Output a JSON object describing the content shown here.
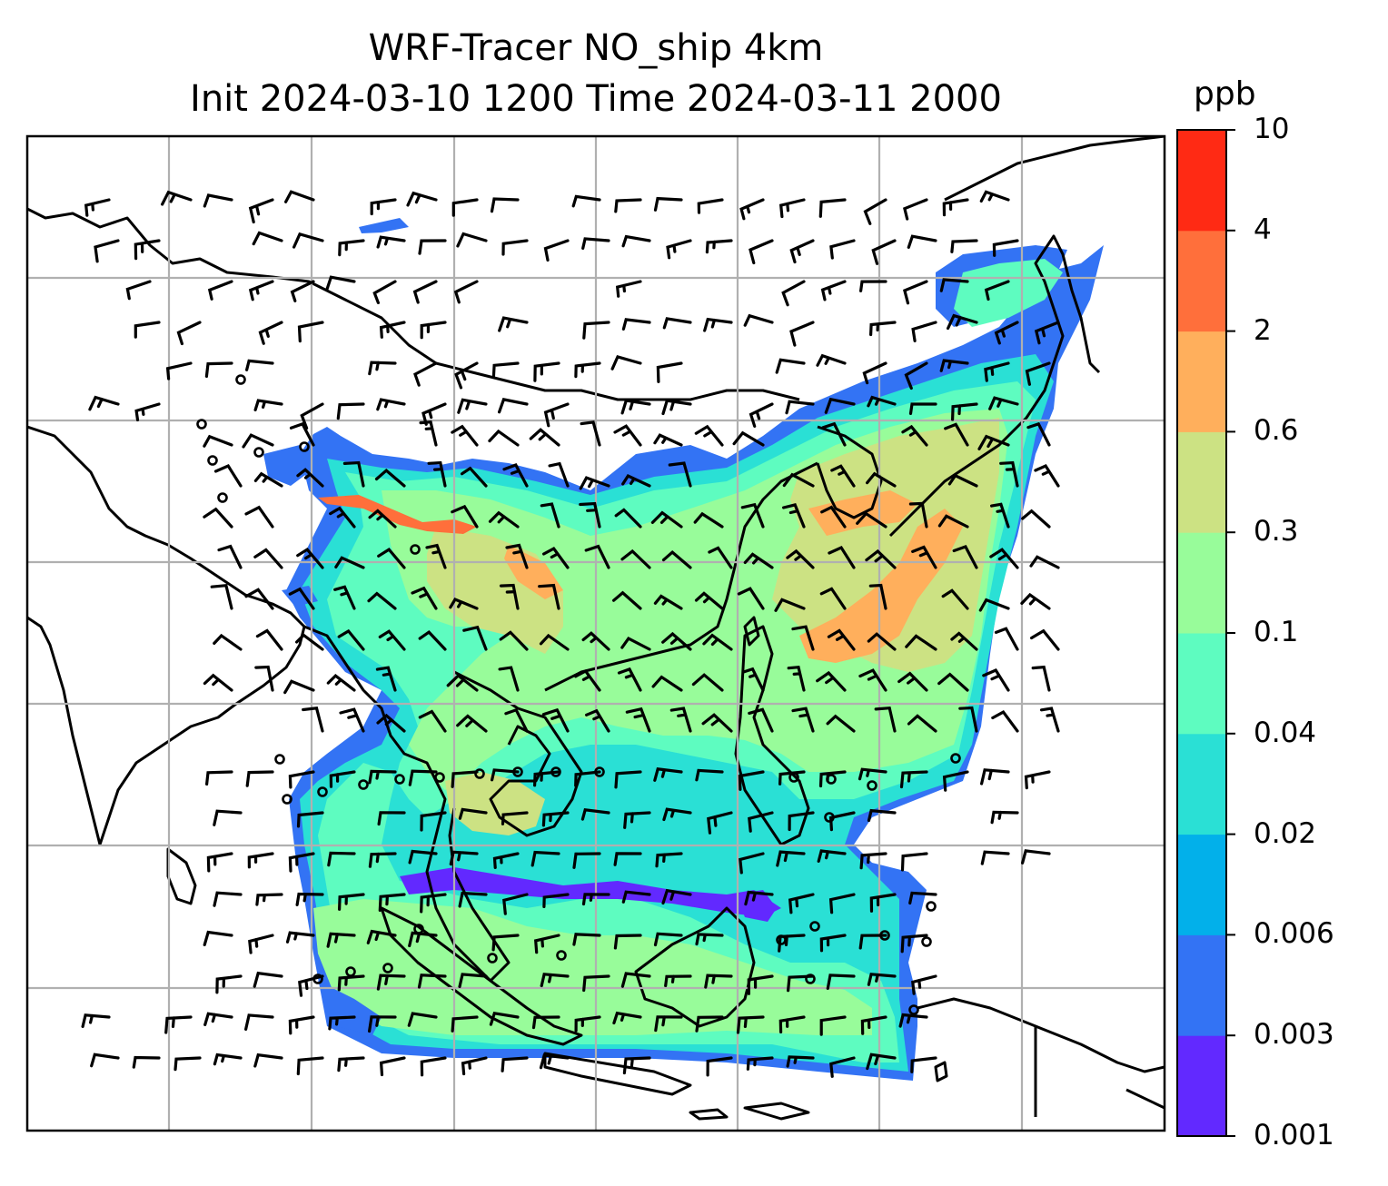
{
  "title": {
    "line1": "WRF-Tracer NO_ship 4km",
    "line2": "Init 2024-03-10 1200 Time 2024-03-11 2000"
  },
  "colorbar": {
    "unit": "ppb",
    "levels": [
      "0.001",
      "0.003",
      "0.006",
      "0.02",
      "0.04",
      "0.1",
      "0.3",
      "0.6",
      "2",
      "4",
      "10"
    ],
    "colors": [
      "#6229ff",
      "#3373f4",
      "#02b0ea",
      "#2ae0d5",
      "#5efcc0",
      "#98fc9a",
      "#cce283",
      "#ffaf5c",
      "#ff6f3b",
      "#ff2a14"
    ]
  },
  "map": {
    "field_colors": {
      "lowest": "#6229ff",
      "low": "#3373f4",
      "cyan": "#2ae0d5",
      "mint": "#5efcc0",
      "green": "#98fc9a",
      "olive": "#cce283",
      "orange": "#ffaf5c",
      "red": "#ff6f3b"
    },
    "coastline_color": "#000000",
    "gridline_color": "#b0b0b0",
    "wind_symbol_color": "#000000"
  }
}
